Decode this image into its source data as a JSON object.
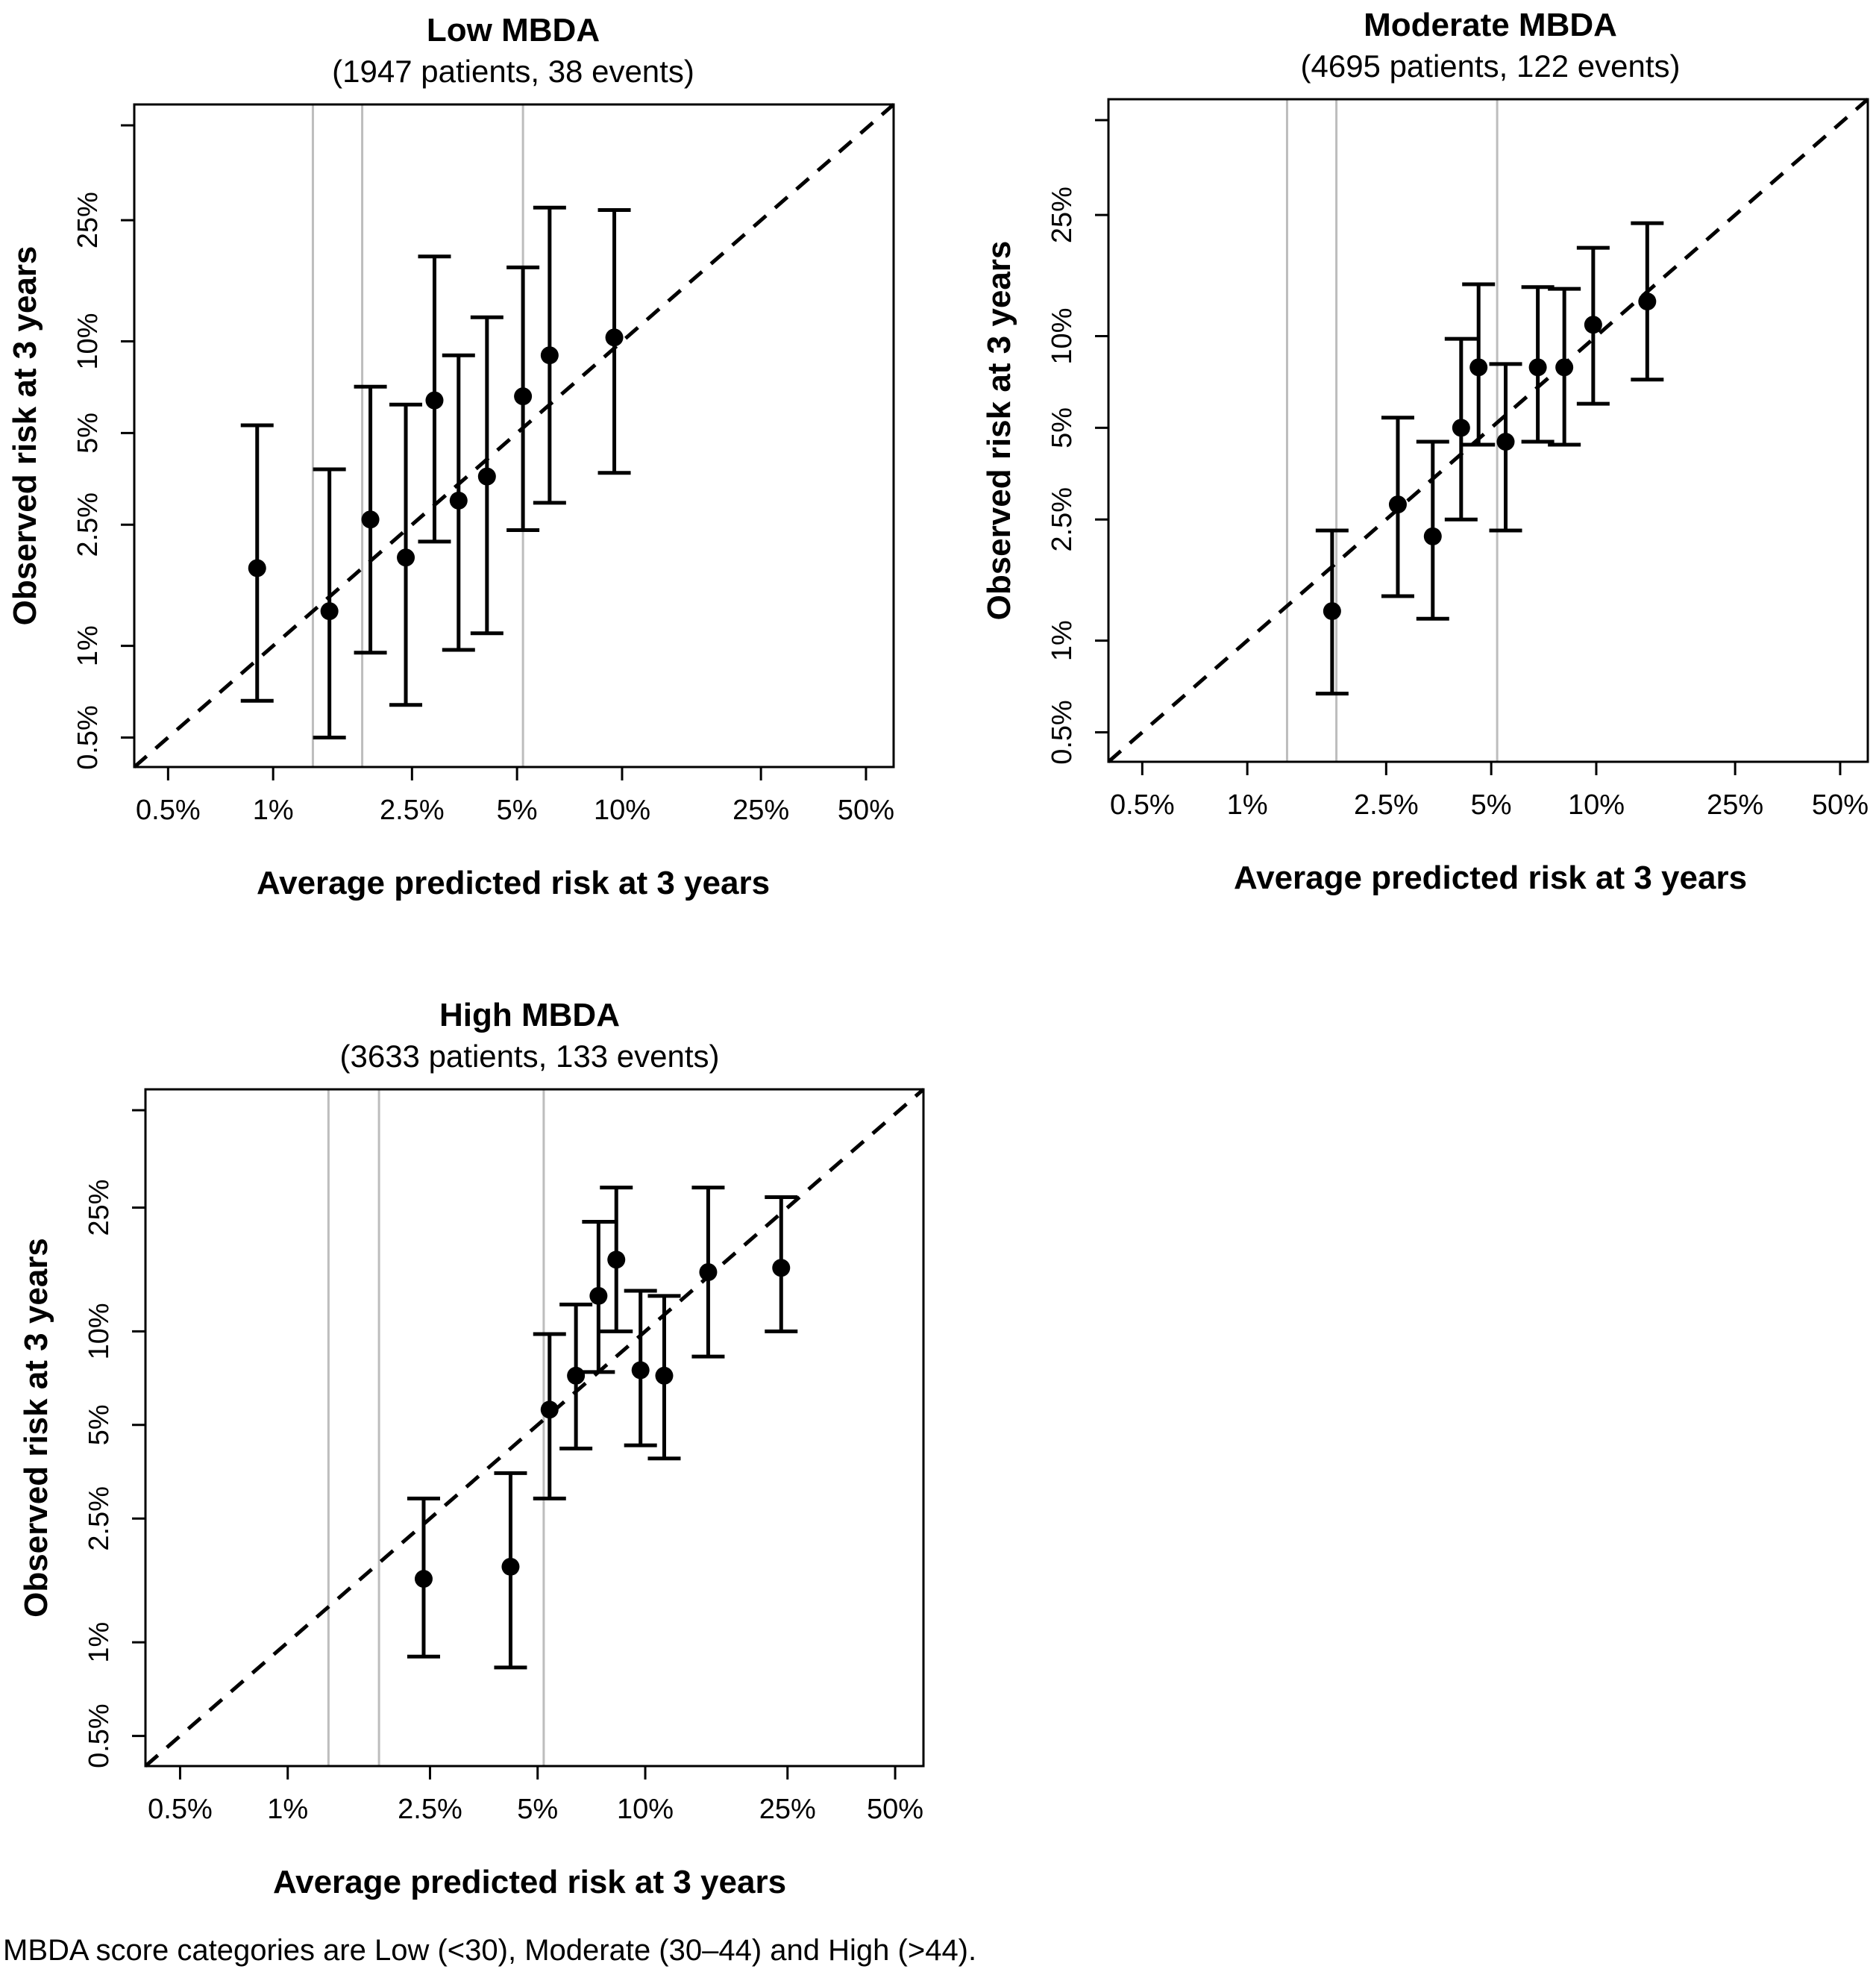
{
  "figure": {
    "caption": "MBDA score categories are Low (<30), Moderate (30–44) and High (>44)."
  },
  "axis_ticks": {
    "labels": [
      "0.5%",
      "1%",
      "2.5%",
      "5%",
      "10%",
      "25%",
      "50%"
    ],
    "values": [
      0.5,
      1,
      2.5,
      5,
      10,
      25,
      50
    ]
  },
  "chart_data": [
    {
      "type": "scatter",
      "title": "Low MBDA",
      "subtitle": "(1947 patients, 38 events)",
      "xlabel": "Average predicted risk at 3 years",
      "ylabel": "Observed risk at 3 years",
      "scale": "log",
      "xlim": [
        0.4,
        60
      ],
      "ylim": [
        0.4,
        60
      ],
      "reference_line": "y = x",
      "vertical_lines_x": [
        1.3,
        1.8,
        5.2
      ],
      "points": [
        {
          "x": 0.9,
          "y": 1.8,
          "lo": 0.66,
          "hi": 5.3
        },
        {
          "x": 1.45,
          "y": 1.3,
          "lo": 0.5,
          "hi": 3.8
        },
        {
          "x": 1.9,
          "y": 2.6,
          "lo": 0.95,
          "hi": 7.1
        },
        {
          "x": 2.4,
          "y": 1.95,
          "lo": 0.64,
          "hi": 6.2
        },
        {
          "x": 2.9,
          "y": 6.4,
          "lo": 2.2,
          "hi": 19.0
        },
        {
          "x": 3.4,
          "y": 3.0,
          "lo": 0.97,
          "hi": 9.0
        },
        {
          "x": 4.1,
          "y": 3.6,
          "lo": 1.1,
          "hi": 12.0
        },
        {
          "x": 5.2,
          "y": 6.6,
          "lo": 2.4,
          "hi": 17.5
        },
        {
          "x": 6.2,
          "y": 9.0,
          "lo": 2.95,
          "hi": 27.5
        },
        {
          "x": 9.5,
          "y": 10.3,
          "lo": 3.7,
          "hi": 27.0
        }
      ]
    },
    {
      "type": "scatter",
      "title": "Moderate MBDA",
      "subtitle": "(4695 patients, 122 events)",
      "xlabel": "Average predicted risk at 3 years",
      "ylabel": "Observed risk at 3 years",
      "scale": "log",
      "xlim": [
        0.4,
        60
      ],
      "ylim": [
        0.4,
        60
      ],
      "reference_line": "y = x",
      "vertical_lines_x": [
        1.3,
        1.8,
        5.2
      ],
      "points": [
        {
          "x": 1.75,
          "y": 1.25,
          "lo": 0.67,
          "hi": 2.3
        },
        {
          "x": 2.7,
          "y": 2.8,
          "lo": 1.4,
          "hi": 5.4
        },
        {
          "x": 3.4,
          "y": 2.2,
          "lo": 1.18,
          "hi": 4.5
        },
        {
          "x": 4.1,
          "y": 5.0,
          "lo": 2.5,
          "hi": 9.8
        },
        {
          "x": 4.6,
          "y": 7.9,
          "lo": 4.4,
          "hi": 14.8
        },
        {
          "x": 5.5,
          "y": 4.5,
          "lo": 2.3,
          "hi": 8.1
        },
        {
          "x": 6.8,
          "y": 7.9,
          "lo": 4.5,
          "hi": 14.5
        },
        {
          "x": 8.1,
          "y": 7.9,
          "lo": 4.4,
          "hi": 14.3
        },
        {
          "x": 9.8,
          "y": 10.9,
          "lo": 6.0,
          "hi": 19.5
        },
        {
          "x": 14.0,
          "y": 13.0,
          "lo": 7.2,
          "hi": 23.5
        }
      ]
    },
    {
      "type": "scatter",
      "title": "High MBDA",
      "subtitle": "(3633 patients, 133 events)",
      "xlabel": "Average predicted risk at 3 years",
      "ylabel": "Observed risk at 3 years",
      "scale": "log",
      "xlim": [
        0.4,
        60
      ],
      "ylim": [
        0.4,
        60
      ],
      "reference_line": "y = x",
      "vertical_lines_x": [
        1.3,
        1.8,
        5.2
      ],
      "points": [
        {
          "x": 2.4,
          "y": 1.6,
          "lo": 0.9,
          "hi": 2.9
        },
        {
          "x": 4.2,
          "y": 1.75,
          "lo": 0.83,
          "hi": 3.5
        },
        {
          "x": 5.4,
          "y": 5.6,
          "lo": 2.9,
          "hi": 9.8
        },
        {
          "x": 6.4,
          "y": 7.2,
          "lo": 4.2,
          "hi": 12.2
        },
        {
          "x": 7.4,
          "y": 13.0,
          "lo": 7.4,
          "hi": 22.5
        },
        {
          "x": 8.3,
          "y": 17.0,
          "lo": 10.0,
          "hi": 29.0
        },
        {
          "x": 9.7,
          "y": 7.5,
          "lo": 4.3,
          "hi": 13.5
        },
        {
          "x": 11.3,
          "y": 7.2,
          "lo": 3.9,
          "hi": 13.0
        },
        {
          "x": 15.0,
          "y": 15.5,
          "lo": 8.3,
          "hi": 29.0
        },
        {
          "x": 24.0,
          "y": 16.0,
          "lo": 10.0,
          "hi": 27.0
        }
      ]
    }
  ]
}
